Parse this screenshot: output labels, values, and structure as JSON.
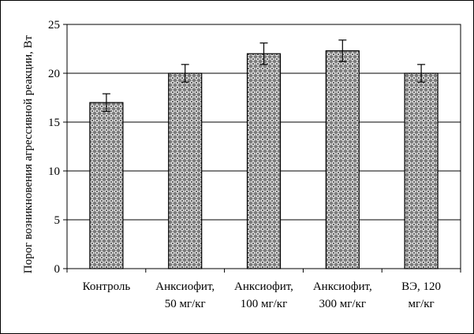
{
  "chart_data": {
    "type": "bar",
    "title": "",
    "xlabel": "",
    "ylabel": "Порог возникновения  агрессивной реакции, Вт",
    "ylim": [
      0,
      25
    ],
    "yticks": [
      0,
      5,
      10,
      15,
      20,
      25
    ],
    "grid": true,
    "legend": "none",
    "categories": [
      [
        "Контроль"
      ],
      [
        "Анксиофит,",
        "50 мг/кг"
      ],
      [
        "Анксиофит,",
        "100 мг/кг"
      ],
      [
        "Анксиофит,",
        "300 мг/кг"
      ],
      [
        "ВЭ, 120",
        "мг/кг"
      ]
    ],
    "values": [
      17,
      20,
      22,
      22.3,
      20
    ],
    "errors": [
      0.9,
      0.9,
      1.1,
      1.1,
      0.9
    ],
    "colors": {
      "bar_fill": "#8c8c8c",
      "bar_pattern_dot": "#ffffff",
      "grid": "#000000",
      "axis": "#000000"
    }
  }
}
